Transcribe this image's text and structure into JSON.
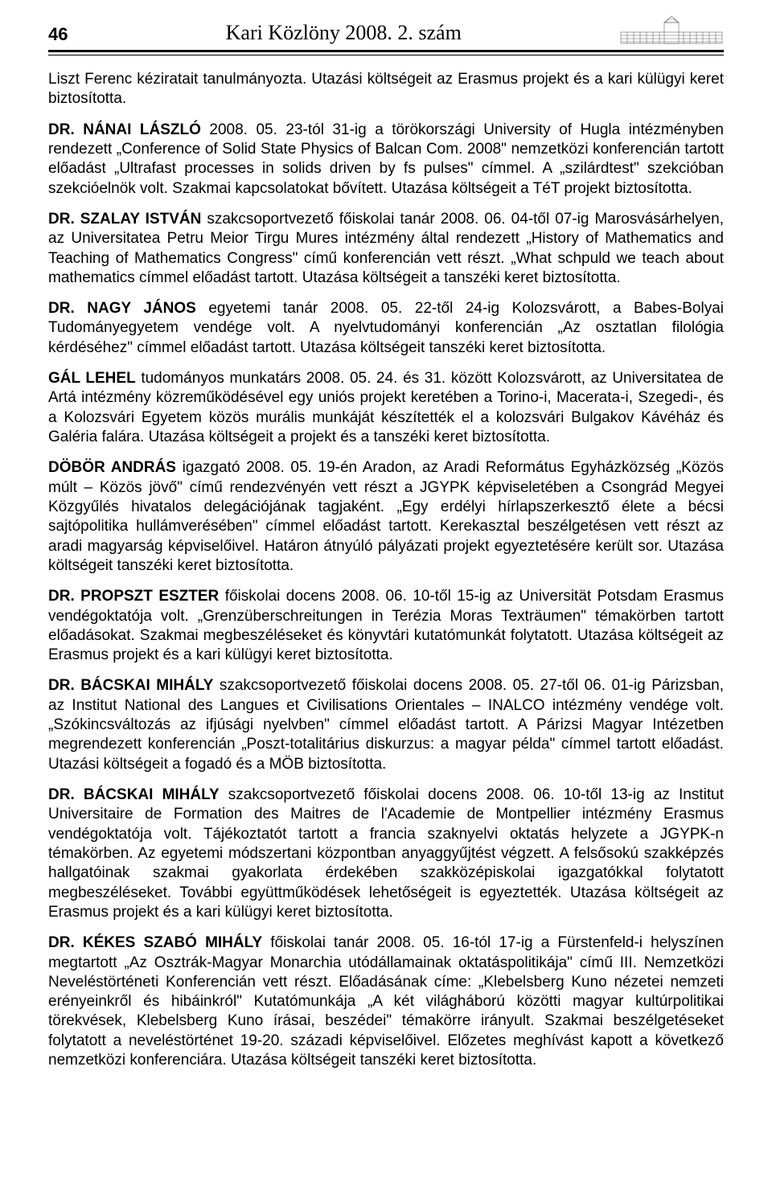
{
  "header": {
    "page_number": "46",
    "journal_title": "Kari Közlöny 2008. 2. szám"
  },
  "paragraphs": [
    {
      "lead_bold": "",
      "text": "Liszt Ferenc kéziratait tanulmányozta. Utazási költségeit az Erasmus projekt és a kari külügyi keret biztosította."
    },
    {
      "lead_bold": "DR. NÁNAI LÁSZLÓ",
      "text": " 2008. 05. 23-tól 31-ig a törökországi University of Hugla intézményben rendezett „Conference of Solid State Physics of Balcan Com. 2008\" nemzetközi konferencián tartott előadást „Ultrafast processes in solids driven by fs pulses\" címmel. A „szilárdtest\" szekcióban szekcióelnök volt. Szakmai kapcsolatokat bővített. Utazása költségeit a TéT projekt biztosította."
    },
    {
      "lead_bold": "DR. SZALAY ISTVÁN",
      "text": " szakcsoportvezető főiskolai tanár 2008. 06. 04-től 07-ig Marosvásárhelyen, az Universitatea Petru Meior Tirgu Mures intézmény által rendezett „History of Mathematics and Teaching of Mathematics Congress\" című konferencián vett részt. „What schpuld we teach about mathematics címmel előadást tartott. Utazása költségeit a tanszéki keret biztosította."
    },
    {
      "lead_bold": "DR. NAGY JÁNOS",
      "text": " egyetemi tanár 2008. 05. 22-től 24-ig Kolozsvárott, a Babes-Bolyai Tudományegyetem vendége volt. A nyelvtudományi konferencián „Az osztatlan filológia kérdéséhez\" címmel előadást tartott. Utazása költségeit tanszéki keret biztosította."
    },
    {
      "lead_bold": "GÁL LEHEL",
      "text": " tudományos munkatárs 2008. 05. 24. és 31. között Kolozsvárott, az Universitatea de Artá intézmény közreműködésével egy uniós projekt keretében a Torino-i, Macerata-i, Szegedi-, és a Kolozsvári Egyetem közös murális munkáját készítették el a kolozsvári Bulgakov Kávéház és Galéria falára. Utazása költségeit a projekt és a tanszéki keret biztosította."
    },
    {
      "lead_bold": "DÖBÖR ANDRÁS",
      "text": " igazgató 2008. 05. 19-én Aradon, az Aradi Református Egyházközség „Közös múlt – Közös jövő\" című rendezvényén vett részt a JGYPK képviseletében a Csongrád Megyei Közgyűlés hivatalos delegációjának tagjaként. „Egy erdélyi hírlapszerkesztő élete a bécsi sajtópolitika hullámverésében\" címmel előadást tartott. Kerekasztal beszélgetésen vett részt az aradi magyarság képviselőivel. Határon átnyúló pályázati projekt egyeztetésére került sor. Utazása költségeit tanszéki keret biztosította."
    },
    {
      "lead_bold": "DR. PROPSZT ESZTER",
      "text": " főiskolai docens 2008. 06. 10-től 15-ig az Universität Potsdam Erasmus vendégoktatója volt. „Grenzüberschreitungen in Terézia Moras Texträumen\" témakörben tartott előadásokat. Szakmai megbeszéléseket és könyvtári kutatómunkát folytatott. Utazása költségeit az Erasmus projekt és a kari külügyi keret biztosította."
    },
    {
      "lead_bold": "DR. BÁCSKAI MIHÁLY",
      "text": " szakcsoportvezető főiskolai docens 2008. 05. 27-től 06. 01-ig Párizsban, az Institut National des Langues et Civilisations Orientales – INALCO intézmény vendége volt. „Szókincsváltozás az ifjúsági nyelvben\" címmel előadást tartott. A Párizsi Magyar Intézetben megrendezett konferencián „Poszt-totalitárius diskurzus: a magyar példa\" címmel tartott előadást. Utazási költségeit a fogadó és a MÖB biztosította."
    },
    {
      "lead_bold": "DR. BÁCSKAI MIHÁLY",
      "text": " szakcsoportvezető főiskolai docens 2008. 06. 10-től 13-ig az Institut Universitaire de Formation des Maitres de l'Academie de Montpellier intézmény Erasmus vendégoktatója volt. Tájékoztatót tartott a francia szaknyelvi oktatás helyzete a JGYPK-n témakörben. Az egyetemi módszertani központban anyaggyűjtést végzett. A felsősokú szakképzés hallgatóinak szakmai gyakorlata érdekében szakközépiskolai igazgatókkal folytatott megbeszéléseket. További együttműködések lehetőségeit is egyeztették. Utazása költségeit az Erasmus projekt és a kari külügyi keret biztosította."
    },
    {
      "lead_bold": "DR. KÉKES SZABÓ MIHÁLY",
      "text": " főiskolai tanár 2008. 05. 16-tól 17-ig a Fürstenfeld-i helyszínen megtartott „Az Osztrák-Magyar Monarchia utódállamainak oktatáspolitikája\" című III. Nemzetközi Neveléstörténeti Konferencián vett részt. Előadásának címe: „Klebelsberg Kuno nézetei nemzeti erényeinkről és hibáinkról\" Kutatómunkája „A két világháború közötti magyar kultúrpolitikai törekvések, Klebelsberg Kuno írásai, beszédei\" témakörre irányult. Szakmai beszélgetéseket folytatott a neveléstörténet 19-20. századi képviselőivel. Előzetes meghívást kapott a következő nemzetközi konferenciára. Utazása költségeit tanszéki keret biztosította."
    }
  ]
}
